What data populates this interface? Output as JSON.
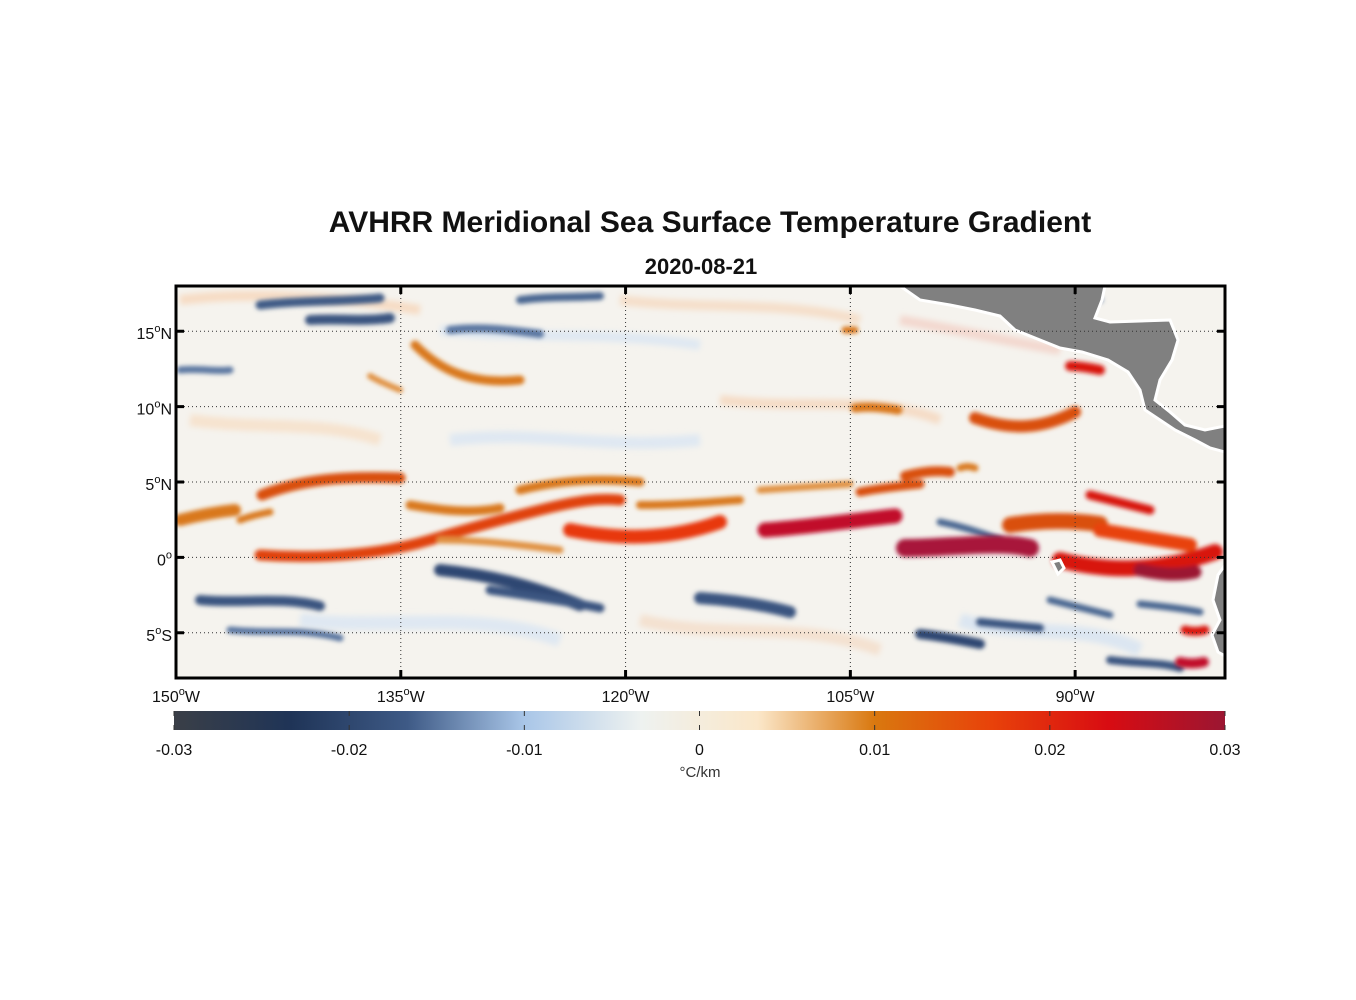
{
  "title": "AVHRR Meridional Sea Surface Temperature Gradient",
  "date": "2020-08-21",
  "map": {
    "lon_range": [
      -150,
      -80
    ],
    "lat_range": [
      -8,
      18
    ],
    "lon_ticks": [
      {
        "value": -150,
        "deg": "150",
        "hemi": "W"
      },
      {
        "value": -135,
        "deg": "135",
        "hemi": "W"
      },
      {
        "value": -120,
        "deg": "120",
        "hemi": "W"
      },
      {
        "value": -105,
        "deg": "105",
        "hemi": "W"
      },
      {
        "value": -90,
        "deg": "90",
        "hemi": "W"
      }
    ],
    "lat_ticks": [
      {
        "value": 15,
        "deg": "15",
        "hemi": "N"
      },
      {
        "value": 10,
        "deg": "10",
        "hemi": "N"
      },
      {
        "value": 5,
        "deg": "5",
        "hemi": "N"
      },
      {
        "value": 0,
        "deg": "0",
        "hemi": ""
      },
      {
        "value": -5,
        "deg": "5",
        "hemi": "S"
      }
    ],
    "land_color": "#808080",
    "grid": "dotted"
  },
  "colorbar": {
    "min": -0.03,
    "max": 0.03,
    "ticks": [
      "-0.03",
      "-0.02",
      "-0.01",
      "0",
      "0.01",
      "0.02",
      "0.03"
    ],
    "label": "°C/km",
    "stops": [
      "#3a3f47",
      "#1f3457",
      "#3e5a86",
      "#a9c6e8",
      "#eef2f0",
      "#fbe7c9",
      "#d9780f",
      "#e8420a",
      "#d80c12",
      "#9b1632"
    ]
  }
}
